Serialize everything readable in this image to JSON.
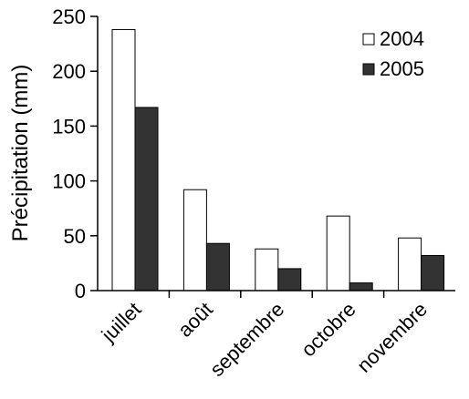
{
  "chart_data": {
    "type": "bar",
    "categories": [
      "juillet",
      "août",
      "septembre",
      "octobre",
      "novembre"
    ],
    "series": [
      {
        "name": "2004",
        "values": [
          238,
          92,
          38,
          68,
          48
        ],
        "color": "#ffffff"
      },
      {
        "name": "2005",
        "values": [
          167,
          43,
          20,
          7,
          32
        ],
        "color": "#333333"
      }
    ],
    "ylabel": "Précipitation (mm)",
    "ylim": [
      0,
      250
    ],
    "yticks": [
      0,
      50,
      100,
      150,
      200,
      250
    ],
    "yticks_labels": [
      "0",
      "50",
      "100",
      "150",
      "200",
      "250"
    ],
    "grid": false,
    "legend_position": "top-right"
  }
}
